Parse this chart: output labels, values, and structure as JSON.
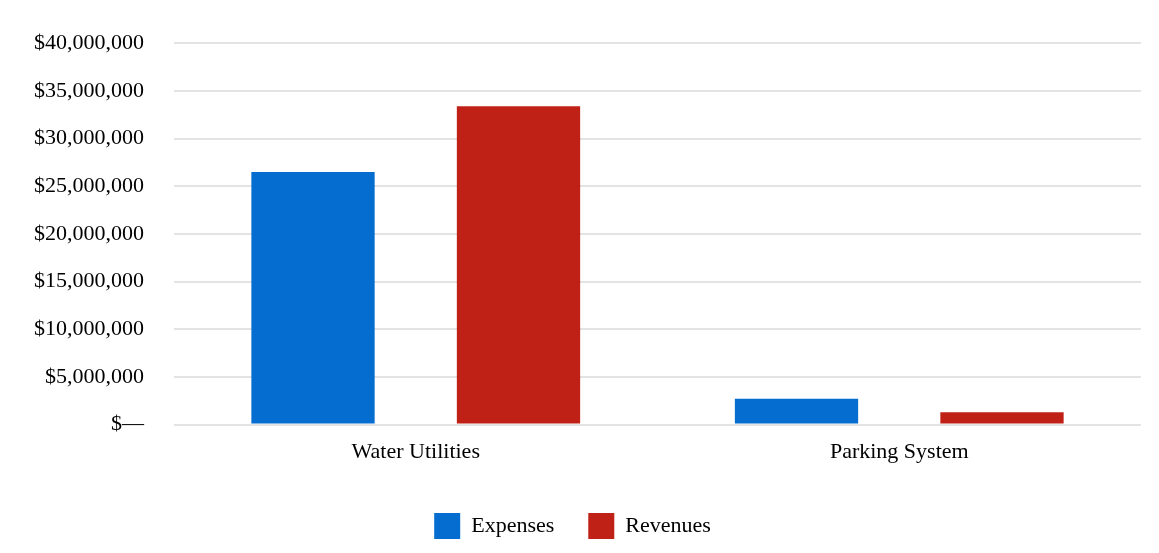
{
  "chart_data": {
    "type": "bar",
    "categories": [
      "Water Utilities",
      "Parking System"
    ],
    "series": [
      {
        "name": "Expenses",
        "color": "#056dd0",
        "values": [
          26500000,
          2700000
        ]
      },
      {
        "name": "Revenues",
        "color": "#c02117",
        "values": [
          33400000,
          1300000
        ]
      }
    ],
    "ylim": [
      0,
      40000000
    ],
    "yticks": [
      {
        "value": 0,
        "label": "$—"
      },
      {
        "value": 5000000,
        "label": "$5,000,000"
      },
      {
        "value": 10000000,
        "label": "$10,000,000"
      },
      {
        "value": 15000000,
        "label": "$15,000,000"
      },
      {
        "value": 20000000,
        "label": "$20,000,000"
      },
      {
        "value": 25000000,
        "label": "$25,000,000"
      },
      {
        "value": 30000000,
        "label": "$30,000,000"
      },
      {
        "value": 35000000,
        "label": "$35,000,000"
      },
      {
        "value": 40000000,
        "label": "$40,000,000"
      }
    ],
    "grid": "y",
    "legend": "bottom"
  }
}
